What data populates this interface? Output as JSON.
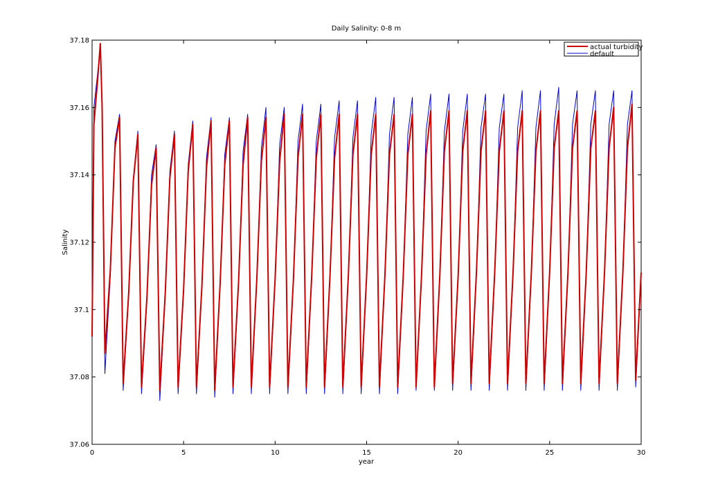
{
  "chart_data": {
    "type": "line",
    "title": "Daily Salinity: 0-8 m",
    "xlabel": "year",
    "ylabel": "Salinity",
    "xlim": [
      0,
      30
    ],
    "ylim": [
      37.06,
      37.18
    ],
    "xticks": [
      0,
      5,
      10,
      15,
      20,
      25,
      30
    ],
    "xtick_labels": [
      "0",
      "5",
      "10",
      "15",
      "20",
      "25",
      "30"
    ],
    "yticks": [
      37.06,
      37.08,
      37.1,
      37.12,
      37.14,
      37.16,
      37.18
    ],
    "ytick_labels": [
      "37.06",
      "37.08",
      "37.1",
      "37.12",
      "37.14",
      "37.16",
      "37.18"
    ],
    "grid": false,
    "legend_position": "top-right",
    "series": [
      {
        "name": "actual turbidity",
        "color": "#cc0000",
        "x": [
          0,
          0.1,
          0.3,
          0.45,
          0.55,
          0.7,
          1.0,
          1.25,
          1.5,
          1.7,
          2.0,
          2.25,
          2.5,
          2.7,
          3.0,
          3.25,
          3.5,
          3.7,
          4.0,
          4.25,
          4.5,
          4.7,
          5.0,
          5.25,
          5.5,
          5.7,
          6.0,
          6.25,
          6.5,
          6.7,
          7.0,
          7.25,
          7.5,
          7.7,
          8.0,
          8.25,
          8.5,
          8.7,
          9.0,
          9.25,
          9.5,
          9.7,
          10.0,
          10.25,
          10.5,
          10.7,
          11.0,
          11.25,
          11.5,
          11.7,
          12.0,
          12.25,
          12.5,
          12.7,
          13.0,
          13.25,
          13.5,
          13.7,
          14.0,
          14.25,
          14.5,
          14.7,
          15.0,
          15.25,
          15.5,
          15.7,
          16.0,
          16.25,
          16.5,
          16.7,
          17.0,
          17.25,
          17.5,
          17.7,
          18.0,
          18.25,
          18.5,
          18.7,
          19.0,
          19.25,
          19.5,
          19.7,
          20.0,
          20.25,
          20.5,
          20.7,
          21.0,
          21.25,
          21.5,
          21.7,
          22.0,
          22.25,
          22.5,
          22.7,
          23.0,
          23.25,
          23.5,
          23.7,
          24.0,
          24.25,
          24.5,
          24.7,
          25.0,
          25.25,
          25.5,
          25.7,
          26.0,
          26.25,
          26.5,
          26.7,
          27.0,
          27.25,
          27.5,
          27.7,
          28.0,
          28.25,
          28.5,
          28.7,
          29.0,
          29.25,
          29.5,
          29.7,
          30.0
        ],
        "y": [
          37.092,
          37.155,
          37.168,
          37.179,
          37.16,
          37.087,
          37.112,
          37.148,
          37.157,
          37.078,
          37.105,
          37.138,
          37.152,
          37.077,
          37.104,
          37.137,
          37.148,
          37.076,
          37.105,
          37.139,
          37.152,
          37.077,
          37.106,
          37.141,
          37.155,
          37.077,
          37.107,
          37.142,
          37.156,
          37.076,
          37.108,
          37.143,
          37.156,
          37.077,
          37.108,
          37.143,
          37.157,
          37.077,
          37.109,
          37.144,
          37.157,
          37.077,
          37.109,
          37.144,
          37.158,
          37.077,
          37.109,
          37.145,
          37.158,
          37.077,
          37.11,
          37.145,
          37.158,
          37.077,
          37.11,
          37.145,
          37.158,
          37.077,
          37.11,
          37.146,
          37.158,
          37.077,
          37.11,
          37.146,
          37.158,
          37.077,
          37.11,
          37.146,
          37.158,
          37.077,
          37.11,
          37.146,
          37.158,
          37.077,
          37.11,
          37.146,
          37.159,
          37.077,
          37.11,
          37.147,
          37.159,
          37.078,
          37.11,
          37.147,
          37.159,
          37.078,
          37.111,
          37.147,
          37.159,
          37.078,
          37.111,
          37.147,
          37.159,
          37.078,
          37.111,
          37.147,
          37.159,
          37.078,
          37.111,
          37.147,
          37.159,
          37.078,
          37.111,
          37.148,
          37.159,
          37.078,
          37.111,
          37.148,
          37.159,
          37.078,
          37.111,
          37.148,
          37.159,
          37.078,
          37.111,
          37.148,
          37.16,
          37.078,
          37.111,
          37.148,
          37.161,
          37.079,
          37.111
        ]
      },
      {
        "name": "default",
        "color": "#0000cc",
        "x": [
          0,
          0.1,
          0.3,
          0.45,
          0.55,
          0.7,
          1.0,
          1.25,
          1.5,
          1.7,
          2.0,
          2.25,
          2.5,
          2.7,
          3.0,
          3.25,
          3.5,
          3.7,
          4.0,
          4.25,
          4.5,
          4.7,
          5.0,
          5.25,
          5.5,
          5.7,
          6.0,
          6.25,
          6.5,
          6.7,
          7.0,
          7.25,
          7.5,
          7.7,
          8.0,
          8.25,
          8.5,
          8.7,
          9.0,
          9.25,
          9.5,
          9.7,
          10.0,
          10.25,
          10.5,
          10.7,
          11.0,
          11.25,
          11.5,
          11.7,
          12.0,
          12.25,
          12.5,
          12.7,
          13.0,
          13.25,
          13.5,
          13.7,
          14.0,
          14.25,
          14.5,
          14.7,
          15.0,
          15.25,
          15.5,
          15.7,
          16.0,
          16.25,
          16.5,
          16.7,
          17.0,
          17.25,
          17.5,
          17.7,
          18.0,
          18.25,
          18.5,
          18.7,
          19.0,
          19.25,
          19.5,
          19.7,
          20.0,
          20.25,
          20.5,
          20.7,
          21.0,
          21.25,
          21.5,
          21.7,
          22.0,
          22.25,
          22.5,
          22.7,
          23.0,
          23.25,
          23.5,
          23.7,
          24.0,
          24.25,
          24.5,
          24.7,
          25.0,
          25.25,
          25.5,
          25.7,
          26.0,
          26.25,
          26.5,
          26.7,
          27.0,
          27.25,
          27.5,
          27.7,
          28.0,
          28.25,
          28.5,
          28.7,
          29.0,
          29.25,
          29.5,
          29.7,
          30.0
        ],
        "y": [
          37.103,
          37.16,
          37.17,
          37.178,
          37.158,
          37.081,
          37.11,
          37.15,
          37.158,
          37.076,
          37.104,
          37.139,
          37.153,
          37.075,
          37.103,
          37.14,
          37.149,
          37.073,
          37.104,
          37.141,
          37.153,
          37.075,
          37.105,
          37.143,
          37.156,
          37.075,
          37.106,
          37.145,
          37.157,
          37.074,
          37.107,
          37.146,
          37.157,
          37.075,
          37.107,
          37.147,
          37.158,
          37.075,
          37.108,
          37.148,
          37.16,
          37.075,
          37.108,
          37.149,
          37.16,
          37.075,
          37.108,
          37.15,
          37.161,
          37.075,
          37.109,
          37.15,
          37.161,
          37.075,
          37.109,
          37.151,
          37.162,
          37.075,
          37.109,
          37.151,
          37.162,
          37.075,
          37.109,
          37.152,
          37.163,
          37.075,
          37.109,
          37.152,
          37.163,
          37.075,
          37.109,
          37.152,
          37.163,
          37.076,
          37.109,
          37.153,
          37.164,
          37.076,
          37.109,
          37.153,
          37.164,
          37.076,
          37.109,
          37.153,
          37.164,
          37.076,
          37.11,
          37.154,
          37.164,
          37.076,
          37.11,
          37.154,
          37.164,
          37.076,
          37.11,
          37.154,
          37.165,
          37.076,
          37.11,
          37.154,
          37.165,
          37.076,
          37.11,
          37.155,
          37.166,
          37.076,
          37.11,
          37.155,
          37.165,
          37.076,
          37.11,
          37.155,
          37.165,
          37.076,
          37.11,
          37.155,
          37.165,
          37.076,
          37.11,
          37.155,
          37.165,
          37.077,
          37.11
        ]
      }
    ]
  }
}
